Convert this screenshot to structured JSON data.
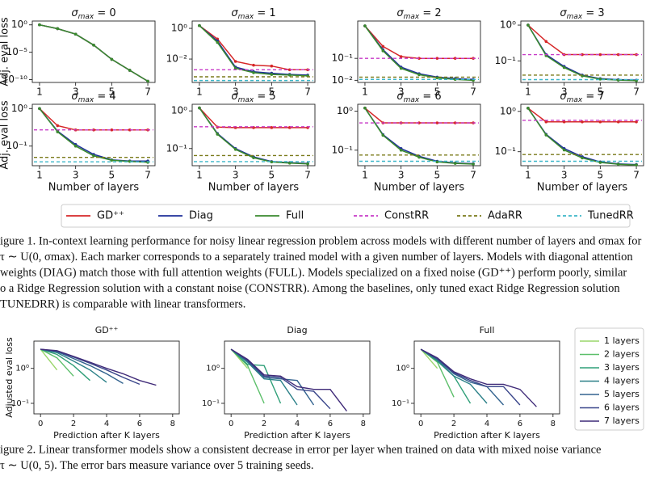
{
  "figure1": {
    "x": [
      1,
      2,
      3,
      4,
      5,
      6,
      7
    ],
    "xlim": [
      0.6,
      7.4
    ],
    "xticks": [
      1,
      3,
      5,
      7
    ],
    "xlabel": "Number of layers",
    "ylabel": "Adj. eval loss",
    "series": [
      {
        "name": "GD⁺⁺",
        "color": "#d62728",
        "dash": false,
        "marker": true
      },
      {
        "name": "Diag",
        "color": "#1f2f9a",
        "dash": false,
        "marker": true
      },
      {
        "name": "Full",
        "color": "#3a8a2e",
        "dash": false,
        "marker": true
      },
      {
        "name": "ConstRR",
        "color": "#c73ac7",
        "dash": true,
        "marker": false
      },
      {
        "name": "AdaRR",
        "color": "#7a7a1a",
        "dash": true,
        "marker": false
      },
      {
        "name": "TunedRR",
        "color": "#3cb6c8",
        "dash": true,
        "marker": false
      }
    ],
    "panels": [
      {
        "title": [
          "σ",
          "max",
          " = 0"
        ],
        "ylim": [
          3e-11,
          5
        ],
        "yticks": [
          {
            "value": 1,
            "label": "10⁰"
          },
          {
            "value": 1e-05,
            "label": "10⁻⁵"
          },
          {
            "value": 1e-10,
            "label": "10⁻¹⁰"
          }
        ],
        "values": [
          [
            1,
            0.2,
            0.02,
            0.0002,
            5e-07,
            5e-09,
            5e-11
          ],
          [
            1,
            0.2,
            0.02,
            0.0002,
            5e-07,
            5e-09,
            5e-11
          ],
          [
            1,
            0.2,
            0.02,
            0.0002,
            5e-07,
            5e-09,
            5e-11
          ],
          null,
          null,
          null
        ]
      },
      {
        "title": [
          "σ",
          "max",
          " = 1"
        ],
        "ylim": [
          0.0003,
          3
        ],
        "yticks": [
          {
            "value": 1,
            "label": "10⁰"
          },
          {
            "value": 0.01,
            "label": "10⁻²"
          }
        ],
        "values": [
          [
            1.5,
            0.2,
            0.007,
            0.004,
            0.0035,
            0.002,
            0.002
          ],
          [
            1.5,
            0.15,
            0.003,
            0.0015,
            0.0012,
            0.001,
            0.0009
          ],
          [
            1.5,
            0.12,
            0.0025,
            0.0013,
            0.001,
            0.0009,
            0.0008
          ],
          0.002,
          0.0007,
          0.0004
        ]
      },
      {
        "title": [
          "σ",
          "max",
          " = 2"
        ],
        "ylim": [
          0.008,
          5
        ],
        "yticks": [
          {
            "value": 0.1,
            "label": "10⁻¹"
          },
          {
            "value": 0.01,
            "label": "10⁻²"
          }
        ],
        "values": [
          [
            3,
            0.35,
            0.12,
            0.1,
            0.1,
            0.1,
            0.1
          ],
          [
            3,
            0.25,
            0.04,
            0.02,
            0.014,
            0.012,
            0.011
          ],
          [
            3,
            0.22,
            0.035,
            0.018,
            0.013,
            0.011,
            0.01
          ],
          0.1,
          0.014,
          0.011
        ]
      },
      {
        "title": [
          "σ",
          "max",
          " = 3"
        ],
        "ylim": [
          0.025,
          1.3
        ],
        "yticks": [
          {
            "value": 1,
            "label": "10⁰"
          },
          {
            "value": 0.1,
            "label": "10⁻¹"
          }
        ],
        "values": [
          [
            1,
            0.35,
            0.15,
            0.15,
            0.15,
            0.15,
            0.15
          ],
          [
            1,
            0.15,
            0.07,
            0.04,
            0.032,
            0.03,
            0.029
          ],
          [
            1,
            0.14,
            0.065,
            0.038,
            0.031,
            0.029,
            0.028
          ],
          0.15,
          0.04,
          0.03
        ]
      },
      {
        "title": [
          "σ",
          "max",
          " = 4"
        ],
        "ylim": [
          0.03,
          1.3
        ],
        "yticks": [
          {
            "value": 1,
            "label": "10⁰"
          },
          {
            "value": 0.1,
            "label": "10⁻¹"
          }
        ],
        "values": [
          [
            1,
            0.35,
            0.27,
            0.27,
            0.27,
            0.27,
            0.27
          ],
          [
            1,
            0.25,
            0.11,
            0.06,
            0.043,
            0.04,
            0.04
          ],
          [
            1,
            0.24,
            0.1,
            0.055,
            0.042,
            0.039,
            0.037
          ],
          0.27,
          0.05,
          0.038
        ]
      },
      {
        "title": [
          "σ",
          "max",
          " = 5"
        ],
        "ylim": [
          0.035,
          1.5
        ],
        "yticks": [
          {
            "value": 1,
            "label": "10⁰"
          },
          {
            "value": 0.1,
            "label": "10⁻¹"
          }
        ],
        "values": [
          [
            1.2,
            0.37,
            0.36,
            0.36,
            0.36,
            0.36,
            0.36
          ],
          [
            1.2,
            0.25,
            0.1,
            0.06,
            0.045,
            0.042,
            0.04
          ],
          [
            1.2,
            0.24,
            0.095,
            0.057,
            0.044,
            0.041,
            0.039
          ],
          0.38,
          0.065,
          0.045
        ]
      },
      {
        "title": [
          "σ",
          "max",
          " = 6"
        ],
        "ylim": [
          0.04,
          1.5
        ],
        "yticks": [
          {
            "value": 1,
            "label": "10⁰"
          },
          {
            "value": 0.1,
            "label": "10⁻¹"
          }
        ],
        "values": [
          [
            1.2,
            0.5,
            0.5,
            0.5,
            0.5,
            0.5,
            0.5
          ],
          [
            1.2,
            0.25,
            0.11,
            0.07,
            0.052,
            0.047,
            0.045
          ],
          [
            1.2,
            0.24,
            0.1,
            0.066,
            0.05,
            0.046,
            0.044
          ],
          0.5,
          0.075,
          0.052
        ]
      },
      {
        "title": [
          "σ",
          "max",
          " = 7"
        ],
        "ylim": [
          0.045,
          1.5
        ],
        "yticks": [
          {
            "value": 1,
            "label": "10⁰"
          },
          {
            "value": 0.1,
            "label": "10⁻¹"
          }
        ],
        "values": [
          [
            1.2,
            0.55,
            0.55,
            0.55,
            0.55,
            0.55,
            0.55
          ],
          [
            1.2,
            0.27,
            0.12,
            0.075,
            0.056,
            0.05,
            0.048
          ],
          [
            1.2,
            0.26,
            0.11,
            0.07,
            0.054,
            0.049,
            0.047
          ],
          0.6,
          0.085,
          0.058
        ]
      }
    ],
    "caption": [
      "igure 1. In-context learning performance for noisy linear regression problem across models with different number of layers and σmax for",
      "τ ∼ U(0, σmax). Each marker corresponds to a separately trained model with a given number of layers. Models with diagonal attention",
      "weights (DIAG) match those with full attention weights (FULL). Models specialized on a fixed noise (GD⁺⁺) perform poorly, similar",
      "o a Ridge Regression solution with a constant noise (CONSTRR). Among the baselines, only tuned exact Ridge Regression solution",
      "TUNEDRR) is comparable with linear transformers."
    ]
  },
  "figure2": {
    "x": [
      0,
      1,
      2,
      3,
      4,
      5,
      6,
      7
    ],
    "xlim": [
      -0.4,
      8.4
    ],
    "xticks": [
      0,
      2,
      4,
      6,
      8
    ],
    "ylim": [
      0.05,
      6
    ],
    "yticks": [
      {
        "value": 1,
        "label": "10⁰"
      },
      {
        "value": 0.1,
        "label": "10⁻¹"
      }
    ],
    "xlabel": "Prediction after K layers",
    "ylabel": "Adjusted eval loss",
    "series": [
      {
        "name": "1 layers",
        "color": "#9ad66a"
      },
      {
        "name": "2 layers",
        "color": "#5cbf6a"
      },
      {
        "name": "3 layers",
        "color": "#2f9f78"
      },
      {
        "name": "4 layers",
        "color": "#2b8088"
      },
      {
        "name": "5 layers",
        "color": "#33638f"
      },
      {
        "name": "6 layers",
        "color": "#39458a"
      },
      {
        "name": "7 layers",
        "color": "#3f2a78"
      }
    ],
    "panels": [
      {
        "title": "GD⁺⁺",
        "lines": [
          [
            3.5,
            0.9
          ],
          [
            3.5,
            2.0,
            0.6
          ],
          [
            3.5,
            2.5,
            1.2,
            0.45
          ],
          [
            3.5,
            2.8,
            1.6,
            0.9,
            0.4
          ],
          [
            3.5,
            3.0,
            1.9,
            1.2,
            0.7,
            0.37
          ],
          [
            3.5,
            3.1,
            2.1,
            1.4,
            0.9,
            0.55,
            0.35
          ],
          [
            3.5,
            3.2,
            2.2,
            1.5,
            1.0,
            0.7,
            0.45,
            0.33
          ]
        ]
      },
      {
        "title": "Diag",
        "lines": [
          [
            3.5,
            1.0
          ],
          [
            3.5,
            1.2,
            0.1
          ],
          [
            3.5,
            1.3,
            1.2,
            0.1
          ],
          [
            3.5,
            1.5,
            0.5,
            0.45,
            0.09
          ],
          [
            3.5,
            1.6,
            0.55,
            0.5,
            0.45,
            0.09
          ],
          [
            3.5,
            1.7,
            0.6,
            0.55,
            0.25,
            0.22,
            0.07
          ],
          [
            3.5,
            1.8,
            0.65,
            0.6,
            0.3,
            0.25,
            0.25,
            0.06
          ]
        ]
      },
      {
        "title": "Full",
        "lines": [
          [
            3.5,
            1.0
          ],
          [
            3.5,
            1.5,
            0.15
          ],
          [
            3.5,
            1.6,
            0.6,
            0.1
          ],
          [
            3.5,
            1.7,
            0.6,
            0.35,
            0.1
          ],
          [
            3.5,
            1.8,
            0.7,
            0.4,
            0.3,
            0.09
          ],
          [
            3.5,
            1.9,
            0.75,
            0.45,
            0.3,
            0.3,
            0.09
          ],
          [
            3.5,
            2.0,
            0.8,
            0.5,
            0.35,
            0.35,
            0.25,
            0.08
          ]
        ]
      }
    ],
    "caption": [
      "igure 2. Linear transformer models show a consistent decrease in error per layer when trained on data with mixed noise variance",
      "τ ∼ U(0, 5). The error bars measure variance over 5 training seeds."
    ]
  }
}
